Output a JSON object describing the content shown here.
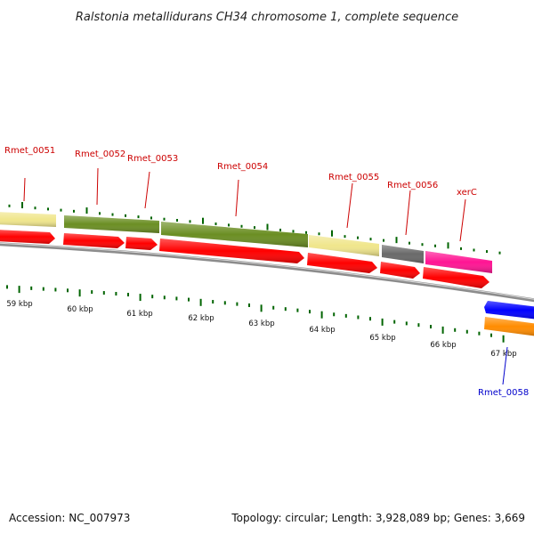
{
  "title": "Ralstonia metallidurans CH34 chromosome 1, complete sequence",
  "footer": {
    "accession": "Accession: NC_007973",
    "summary": "Topology: circular; Length: 3,928,089 bp; Genes: 3,669"
  },
  "colors": {
    "label_top": "#cc0000",
    "label_bottom": "#0000cc",
    "tick": "#006400",
    "backbone": "#8c8c8c",
    "cds": "#ff0000"
  },
  "kbp_labels": [
    "59 kbp",
    "60 kbp",
    "61 kbp",
    "62 kbp",
    "63 kbp",
    "64 kbp",
    "65 kbp",
    "66 kbp",
    "67 kbp"
  ],
  "genes": [
    {
      "label": "Rmet_0051",
      "color": "#f0e68c"
    },
    {
      "label": "Rmet_0052",
      "color": "#6b8e23"
    },
    {
      "label": "Rmet_0053",
      "color": "#6b8e23"
    },
    {
      "label": "Rmet_0054",
      "color": "#6b8e23"
    },
    {
      "label": "Rmet_0055",
      "color": "#f0e68c"
    },
    {
      "label": "Rmet_0056",
      "color": "#696969"
    },
    {
      "label": "xerC",
      "color": "#ff1493"
    },
    {
      "label": "Rmet_0058",
      "color": "#0000ff"
    }
  ]
}
